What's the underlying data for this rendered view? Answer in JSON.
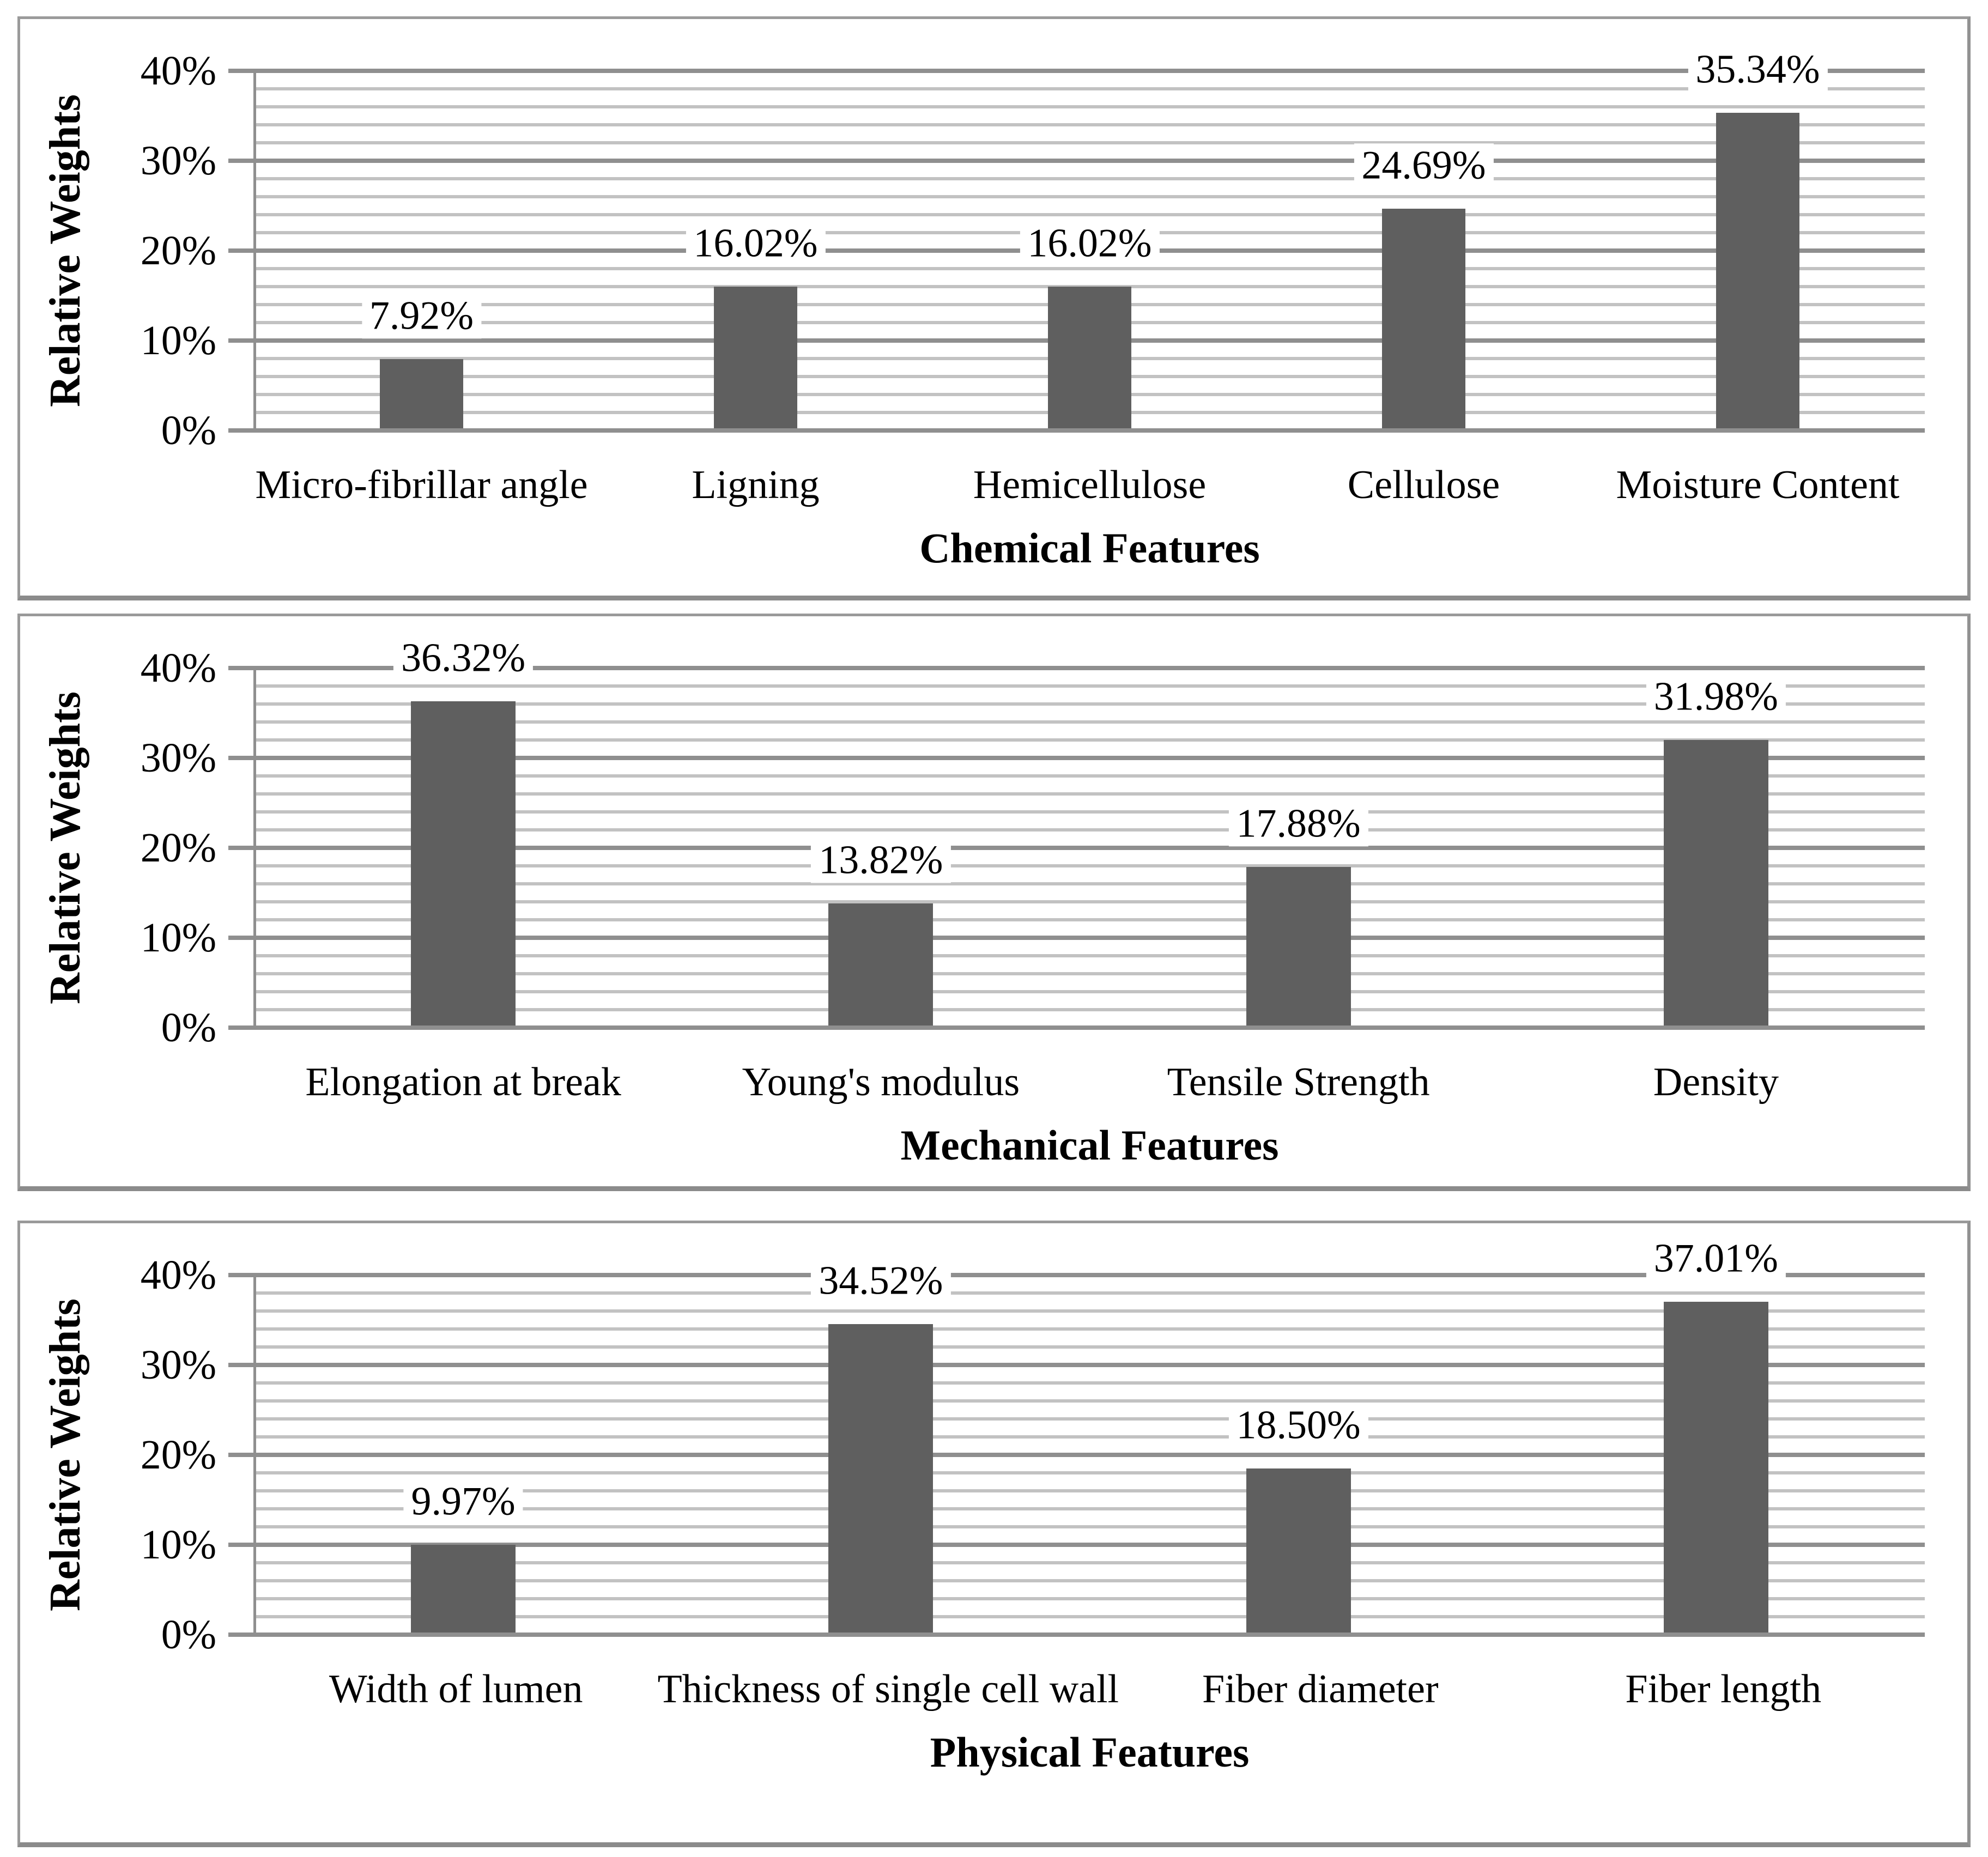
{
  "figure": {
    "background_color": "#ffffff",
    "bar_color": "#5f5f5f",
    "major_gridline_color": "#8f8f8f",
    "minor_gridline_color": "#c2c2c2",
    "axis_line_color": "#8f8f8f",
    "panel_border_color": "#9a9a9a",
    "text_color": "#000000"
  },
  "chart_data": [
    {
      "type": "bar",
      "xlabel": "Chemical Features",
      "ylabel": "Relative Weights",
      "ylim": [
        0,
        40
      ],
      "y_tick_labels": [
        "0%",
        "10%",
        "20%",
        "30%",
        "40%"
      ],
      "major_grid_step_percent": 10,
      "minor_grid_step_percent": 2,
      "grid": "on",
      "legend": "none",
      "categories": [
        "Micro-fibrillar angle",
        "Ligning",
        "Hemicellulose",
        "Cellulose",
        "Moisture Content"
      ],
      "values_percent": [
        7.92,
        16.02,
        16.02,
        24.69,
        35.34
      ],
      "data_labels": [
        "7.92%",
        "16.02%",
        "16.02%",
        "24.69%",
        "35.34%"
      ]
    },
    {
      "type": "bar",
      "xlabel": "Mechanical Features",
      "ylabel": "Relative Weights",
      "ylim": [
        0,
        40
      ],
      "y_tick_labels": [
        "0%",
        "10%",
        "20%",
        "30%",
        "40%"
      ],
      "major_grid_step_percent": 10,
      "minor_grid_step_percent": 2,
      "grid": "on",
      "legend": "none",
      "categories": [
        "Elongation at break",
        "Young's modulus",
        "Tensile Strength",
        "Density"
      ],
      "values_percent": [
        36.32,
        13.82,
        17.88,
        31.98
      ],
      "data_labels": [
        "36.32%",
        "13.82%",
        "17.88%",
        "31.98%"
      ]
    },
    {
      "type": "bar",
      "xlabel": "Physical Features",
      "ylabel": "Relative Weights",
      "ylim": [
        0,
        40
      ],
      "y_tick_labels": [
        "0%",
        "10%",
        "20%",
        "30%",
        "40%"
      ],
      "major_grid_step_percent": 10,
      "minor_grid_step_percent": 2,
      "grid": "on",
      "legend": "none",
      "categories": [
        "Width of lumen",
        "Thickness of single cell wall",
        "Fiber diameter",
        "Fiber length"
      ],
      "values_percent": [
        9.97,
        34.52,
        18.5,
        37.01
      ],
      "data_labels": [
        "9.97%",
        "34.52%",
        "18.50%",
        "37.01%"
      ]
    }
  ]
}
